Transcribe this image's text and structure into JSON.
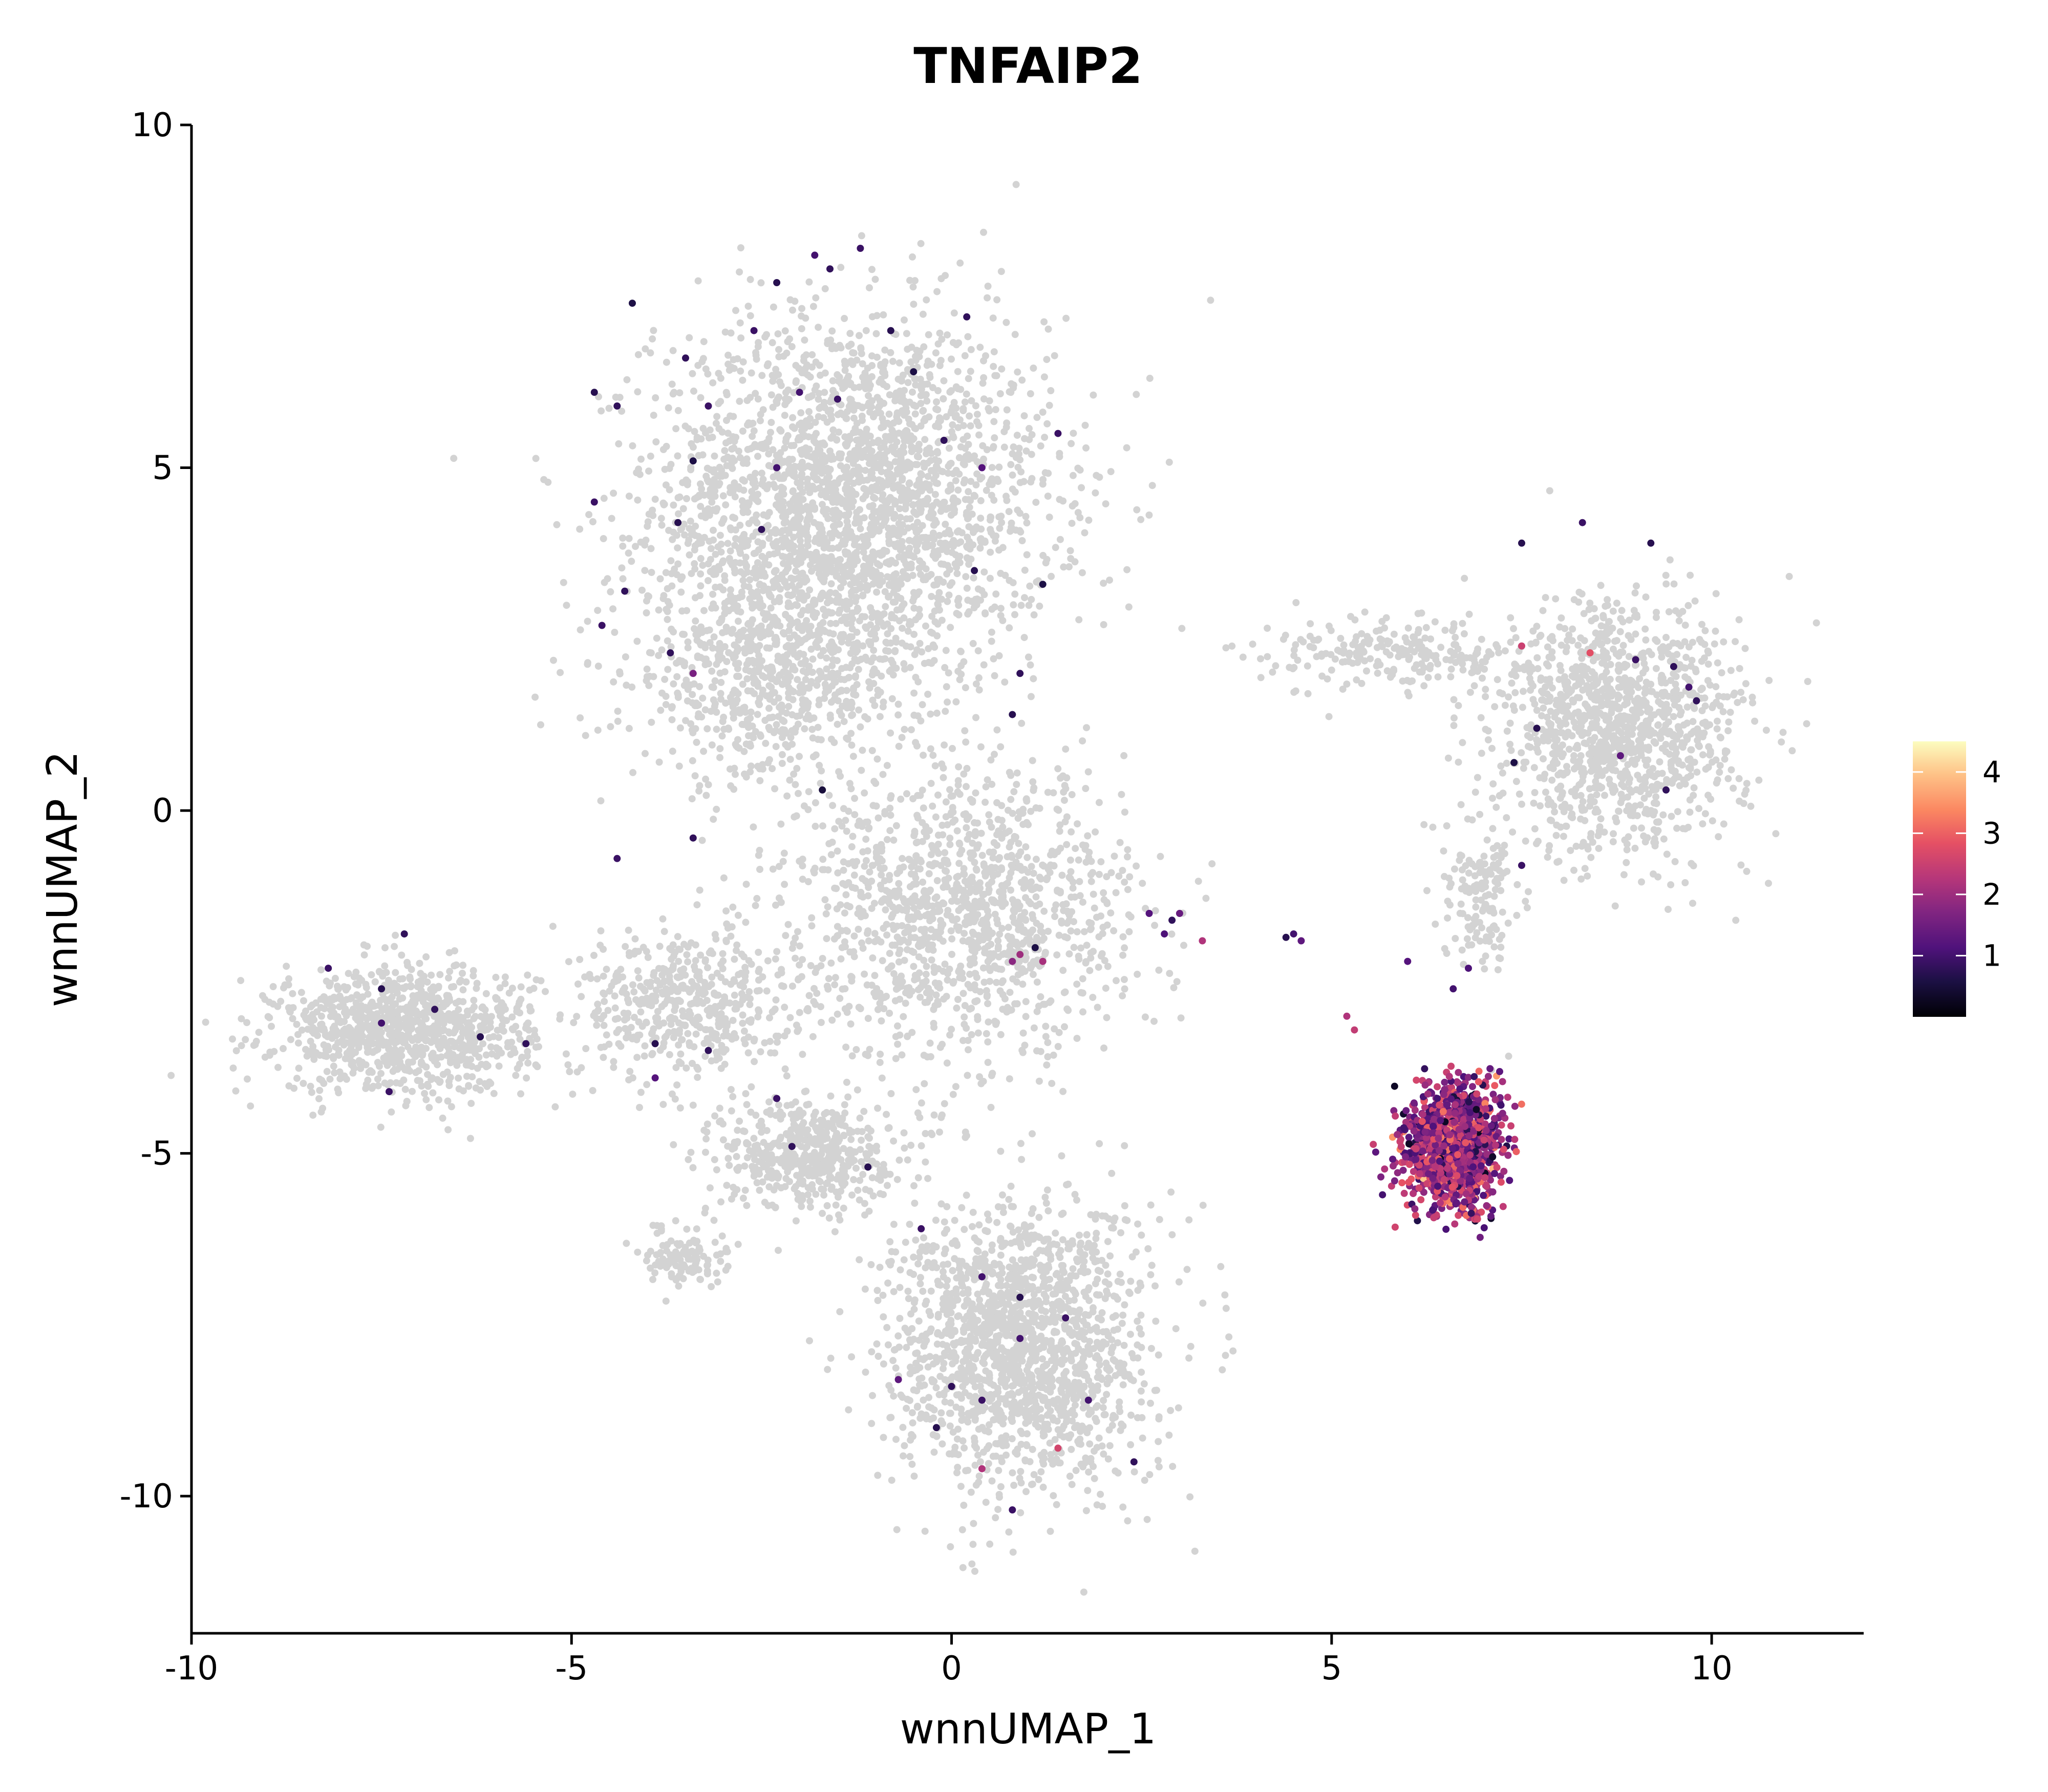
{
  "chart_data": {
    "type": "scatter",
    "title": "TNFAIP2",
    "xlabel": "wnnUMAP_1",
    "ylabel": "wnnUMAP_2",
    "xlim": [
      -10,
      12
    ],
    "ylim": [
      -12,
      10
    ],
    "x_ticks": [
      -10,
      -5,
      0,
      5,
      10
    ],
    "y_ticks": [
      -10,
      -5,
      0,
      5,
      10
    ],
    "x_tick_labels": [
      "-10",
      "-5",
      "0",
      "5",
      "10"
    ],
    "y_tick_labels": [
      "-10",
      "-5",
      "0",
      "5",
      "10"
    ],
    "grid": false,
    "background_cells_color": "#d3d3d3",
    "colormap": "magma",
    "colormap_range": [
      0,
      4.5
    ],
    "legend": {
      "placement": "right",
      "ticks": [
        1,
        2,
        3,
        4
      ],
      "tick_labels": [
        "1",
        "2",
        "3",
        "4"
      ]
    },
    "background_clusters": [
      {
        "center": [
          -1.3,
          4.5
        ],
        "spread": [
          2.6,
          2.7
        ],
        "n": 2600
      },
      {
        "center": [
          -2.4,
          2.0
        ],
        "spread": [
          1.8,
          1.6
        ],
        "n": 700
      },
      {
        "center": [
          -7.2,
          -3.2
        ],
        "spread": [
          1.7,
          0.9
        ],
        "n": 1000
      },
      {
        "center": [
          -3.5,
          -2.8
        ],
        "spread": [
          1.4,
          1.1
        ],
        "n": 500
      },
      {
        "center": [
          -1.9,
          -5.0
        ],
        "spread": [
          1.1,
          0.8
        ],
        "n": 500
      },
      {
        "center": [
          0.9,
          -7.8
        ],
        "spread": [
          1.7,
          2.1
        ],
        "n": 1700
      },
      {
        "center": [
          -3.5,
          -6.5
        ],
        "spread": [
          0.55,
          0.4
        ],
        "n": 120
      },
      {
        "center": [
          8.8,
          1.2
        ],
        "spread": [
          1.6,
          1.8
        ],
        "n": 1200
      },
      {
        "center": [
          0.2,
          -1.5
        ],
        "spread": [
          2.2,
          2.1
        ],
        "n": 1300
      },
      {
        "center": [
          6.0,
          2.3
        ],
        "spread": [
          1.9,
          0.5
        ],
        "n": 250
      },
      {
        "center": [
          7.0,
          -1.2
        ],
        "spread": [
          0.5,
          1.3
        ],
        "n": 150
      }
    ],
    "expressing_cluster": {
      "center": [
        6.6,
        -4.9
      ],
      "spread": [
        0.6,
        0.85
      ],
      "n": 1300,
      "mean_expression": 1.9
    },
    "expressing_points": [
      [
        -1.8,
        8.1,
        1.0
      ],
      [
        -1.6,
        7.9,
        0.8
      ],
      [
        -1.2,
        8.2,
        0.9
      ],
      [
        -2.3,
        7.7,
        0.7
      ],
      [
        -4.2,
        7.4,
        0.6
      ],
      [
        -3.5,
        6.6,
        0.8
      ],
      [
        -2.0,
        6.1,
        1.0
      ],
      [
        -2.6,
        7.0,
        0.9
      ],
      [
        -0.8,
        7.0,
        0.7
      ],
      [
        0.2,
        7.2,
        0.8
      ],
      [
        -0.5,
        6.4,
        0.6
      ],
      [
        -1.5,
        6.0,
        0.9
      ],
      [
        -4.7,
        6.1,
        0.7
      ],
      [
        -4.4,
        5.9,
        0.8
      ],
      [
        -3.2,
        5.9,
        0.9
      ],
      [
        -2.3,
        5.0,
        1.0
      ],
      [
        -3.4,
        5.1,
        0.6
      ],
      [
        -0.1,
        5.4,
        0.8
      ],
      [
        1.4,
        5.5,
        0.9
      ],
      [
        0.4,
        5.0,
        1.2
      ],
      [
        -4.7,
        4.5,
        0.9
      ],
      [
        -3.6,
        4.2,
        0.7
      ],
      [
        -2.5,
        4.1,
        0.8
      ],
      [
        -4.3,
        3.2,
        0.8
      ],
      [
        0.3,
        3.5,
        0.7
      ],
      [
        1.2,
        3.3,
        0.6
      ],
      [
        -4.6,
        2.7,
        0.9
      ],
      [
        -3.7,
        2.3,
        0.8
      ],
      [
        0.9,
        2.0,
        0.8
      ],
      [
        -3.4,
        2.0,
        1.6
      ],
      [
        0.8,
        1.4,
        0.7
      ],
      [
        -1.7,
        0.3,
        0.5
      ],
      [
        -3.4,
        -0.4,
        0.8
      ],
      [
        -4.4,
        -0.7,
        0.9
      ],
      [
        -7.2,
        -1.8,
        0.8
      ],
      [
        -8.2,
        -2.3,
        0.9
      ],
      [
        -7.5,
        -2.6,
        0.7
      ],
      [
        -6.8,
        -2.9,
        0.8
      ],
      [
        -7.5,
        -3.1,
        1.0
      ],
      [
        -6.2,
        -3.3,
        0.7
      ],
      [
        -5.6,
        -3.4,
        0.8
      ],
      [
        -7.4,
        -4.1,
        0.9
      ],
      [
        -3.9,
        -3.4,
        0.7
      ],
      [
        -3.2,
        -3.5,
        0.8
      ],
      [
        -3.9,
        -3.9,
        1.2
      ],
      [
        -2.3,
        -4.2,
        0.9
      ],
      [
        -2.1,
        -4.9,
        0.8
      ],
      [
        -1.1,
        -5.2,
        0.7
      ],
      [
        -0.4,
        -6.1,
        0.9
      ],
      [
        0.4,
        -6.8,
        1.0
      ],
      [
        0.9,
        -7.1,
        0.7
      ],
      [
        1.5,
        -7.4,
        0.9
      ],
      [
        0.9,
        -7.7,
        1.0
      ],
      [
        -0.7,
        -8.3,
        1.3
      ],
      [
        0.0,
        -8.4,
        0.8
      ],
      [
        -0.2,
        -9.0,
        0.7
      ],
      [
        0.4,
        -8.6,
        0.9
      ],
      [
        1.8,
        -8.6,
        1.0
      ],
      [
        0.4,
        -9.6,
        2.2
      ],
      [
        1.4,
        -9.3,
        2.6
      ],
      [
        2.4,
        -9.5,
        0.8
      ],
      [
        0.8,
        -10.2,
        0.9
      ],
      [
        0.9,
        -2.1,
        2.0
      ],
      [
        0.8,
        -2.2,
        1.8
      ],
      [
        1.2,
        -2.2,
        2.1
      ],
      [
        1.1,
        -2.0,
        0.6
      ],
      [
        2.6,
        -1.5,
        1.2
      ],
      [
        2.9,
        -1.6,
        0.8
      ],
      [
        3.0,
        -1.5,
        1.4
      ],
      [
        2.8,
        -1.8,
        1.1
      ],
      [
        3.3,
        -1.9,
        2.2
      ],
      [
        4.5,
        -1.8,
        1.0
      ],
      [
        4.6,
        -1.9,
        1.3
      ],
      [
        4.4,
        -1.85,
        0.7
      ],
      [
        7.5,
        3.9,
        0.7
      ],
      [
        8.3,
        4.2,
        0.9
      ],
      [
        9.2,
        3.9,
        0.7
      ],
      [
        7.5,
        2.4,
        2.5
      ],
      [
        8.4,
        2.3,
        2.8
      ],
      [
        9.0,
        2.2,
        0.9
      ],
      [
        9.5,
        2.1,
        0.8
      ],
      [
        9.7,
        1.8,
        1.0
      ],
      [
        9.8,
        1.6,
        0.8
      ],
      [
        7.7,
        1.2,
        0.7
      ],
      [
        8.8,
        0.8,
        1.3
      ],
      [
        7.4,
        0.7,
        0.6
      ],
      [
        9.4,
        0.3,
        0.8
      ],
      [
        7.5,
        -0.8,
        0.9
      ],
      [
        6.0,
        -2.2,
        1.2
      ],
      [
        5.3,
        -3.2,
        2.4
      ],
      [
        5.2,
        -3.0,
        2.2
      ],
      [
        6.6,
        -2.6,
        1.0
      ],
      [
        6.8,
        -2.3,
        1.1
      ]
    ]
  }
}
